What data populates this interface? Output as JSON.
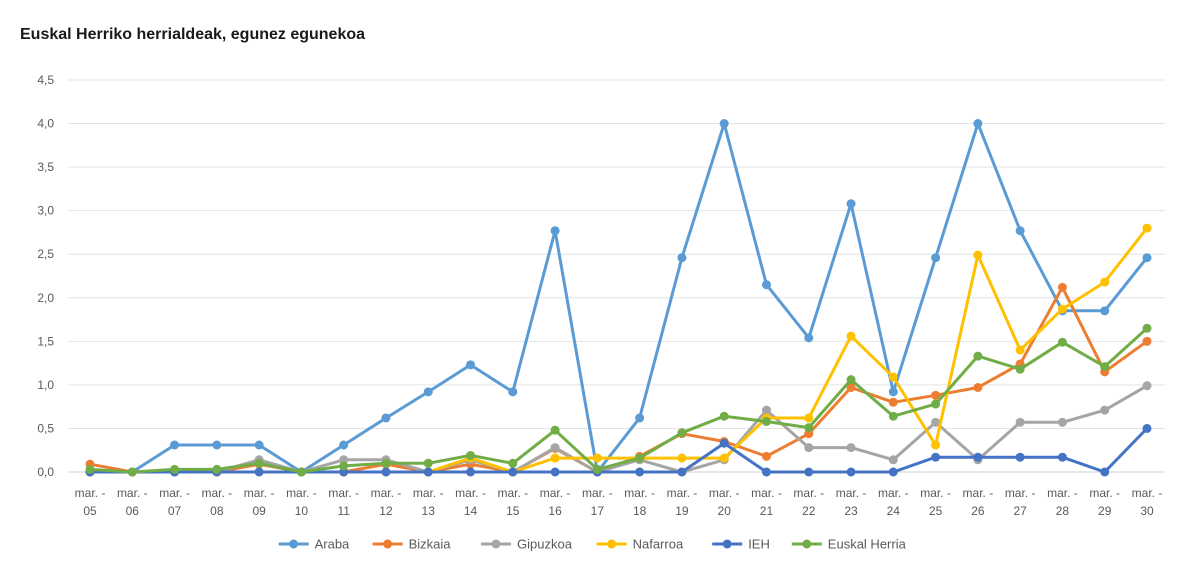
{
  "chart_data": {
    "type": "line",
    "title": "Euskal Herriko herrialdeak, egunez egunekoa",
    "xlabel": "",
    "ylabel": "",
    "ylim": [
      0,
      4.5
    ],
    "yticks": [
      "0,0",
      "0,5",
      "1,0",
      "1,5",
      "2,0",
      "2,5",
      "3,0",
      "3,5",
      "4,0",
      "4,5"
    ],
    "grid": true,
    "legend": "bottom",
    "x": [
      [
        "mar. -",
        "05"
      ],
      [
        "mar. -",
        "06"
      ],
      [
        "mar. -",
        "07"
      ],
      [
        "mar. -",
        "08"
      ],
      [
        "mar. -",
        "09"
      ],
      [
        "mar. -",
        "10"
      ],
      [
        "mar. -",
        "11"
      ],
      [
        "mar. -",
        "12"
      ],
      [
        "mar. -",
        "13"
      ],
      [
        "mar. -",
        "14"
      ],
      [
        "mar. -",
        "15"
      ],
      [
        "mar. -",
        "16"
      ],
      [
        "mar. -",
        "17"
      ],
      [
        "mar. -",
        "18"
      ],
      [
        "mar. -",
        "19"
      ],
      [
        "mar. -",
        "20"
      ],
      [
        "mar. -",
        "21"
      ],
      [
        "mar. -",
        "22"
      ],
      [
        "mar. -",
        "23"
      ],
      [
        "mar. -",
        "24"
      ],
      [
        "mar. -",
        "25"
      ],
      [
        "mar. -",
        "26"
      ],
      [
        "mar. -",
        "27"
      ],
      [
        "mar. -",
        "28"
      ],
      [
        "mar. -",
        "29"
      ],
      [
        "mar. -",
        "30"
      ]
    ],
    "series": [
      {
        "name": "Araba",
        "color": "#5B9BD5",
        "values": [
          0.0,
          0.0,
          0.31,
          0.31,
          0.31,
          0.0,
          0.31,
          0.62,
          0.92,
          1.23,
          0.92,
          2.77,
          0.0,
          0.62,
          2.46,
          4.0,
          2.15,
          1.54,
          3.08,
          0.92,
          2.46,
          4.0,
          2.77,
          1.85,
          1.85,
          2.46
        ]
      },
      {
        "name": "Bizkaia",
        "color": "#ED7D31",
        "values": [
          0.09,
          0.0,
          0.0,
          0.0,
          0.09,
          0.0,
          0.0,
          0.09,
          0.0,
          0.09,
          0.0,
          0.27,
          0.0,
          0.18,
          0.44,
          0.35,
          0.18,
          0.44,
          0.97,
          0.8,
          0.88,
          0.97,
          1.24,
          2.12,
          1.15,
          1.5
        ]
      },
      {
        "name": "Gipuzkoa",
        "color": "#A5A5A5",
        "values": [
          0.0,
          0.0,
          0.0,
          0.0,
          0.14,
          0.0,
          0.14,
          0.14,
          0.0,
          0.14,
          0.0,
          0.28,
          0.0,
          0.14,
          0.0,
          0.14,
          0.71,
          0.28,
          0.28,
          0.14,
          0.57,
          0.14,
          0.57,
          0.57,
          0.71,
          0.99
        ]
      },
      {
        "name": "Nafarroa",
        "color": "#FFC000",
        "values": [
          0.0,
          0.0,
          0.0,
          0.0,
          0.0,
          0.0,
          0.0,
          0.0,
          0.0,
          0.16,
          0.0,
          0.16,
          0.16,
          0.16,
          0.16,
          0.16,
          0.62,
          0.62,
          1.56,
          1.09,
          0.31,
          2.49,
          1.4,
          1.87,
          2.18,
          2.8
        ]
      },
      {
        "name": "IEH",
        "color": "#4472C4",
        "values": [
          0.0,
          0.0,
          0.0,
          0.0,
          0.0,
          0.0,
          0.0,
          0.0,
          0.0,
          0.0,
          0.0,
          0.0,
          0.0,
          0.0,
          0.0,
          0.33,
          0.0,
          0.0,
          0.0,
          0.0,
          0.17,
          0.17,
          0.17,
          0.17,
          0.0,
          0.5
        ]
      },
      {
        "name": "Euskal Herria",
        "color": "#70AD47",
        "values": [
          0.03,
          0.0,
          0.03,
          0.03,
          0.1,
          0.0,
          0.07,
          0.1,
          0.1,
          0.19,
          0.1,
          0.48,
          0.03,
          0.16,
          0.45,
          0.64,
          0.58,
          0.51,
          1.06,
          0.64,
          0.78,
          1.33,
          1.18,
          1.49,
          1.21,
          1.65
        ]
      }
    ]
  }
}
